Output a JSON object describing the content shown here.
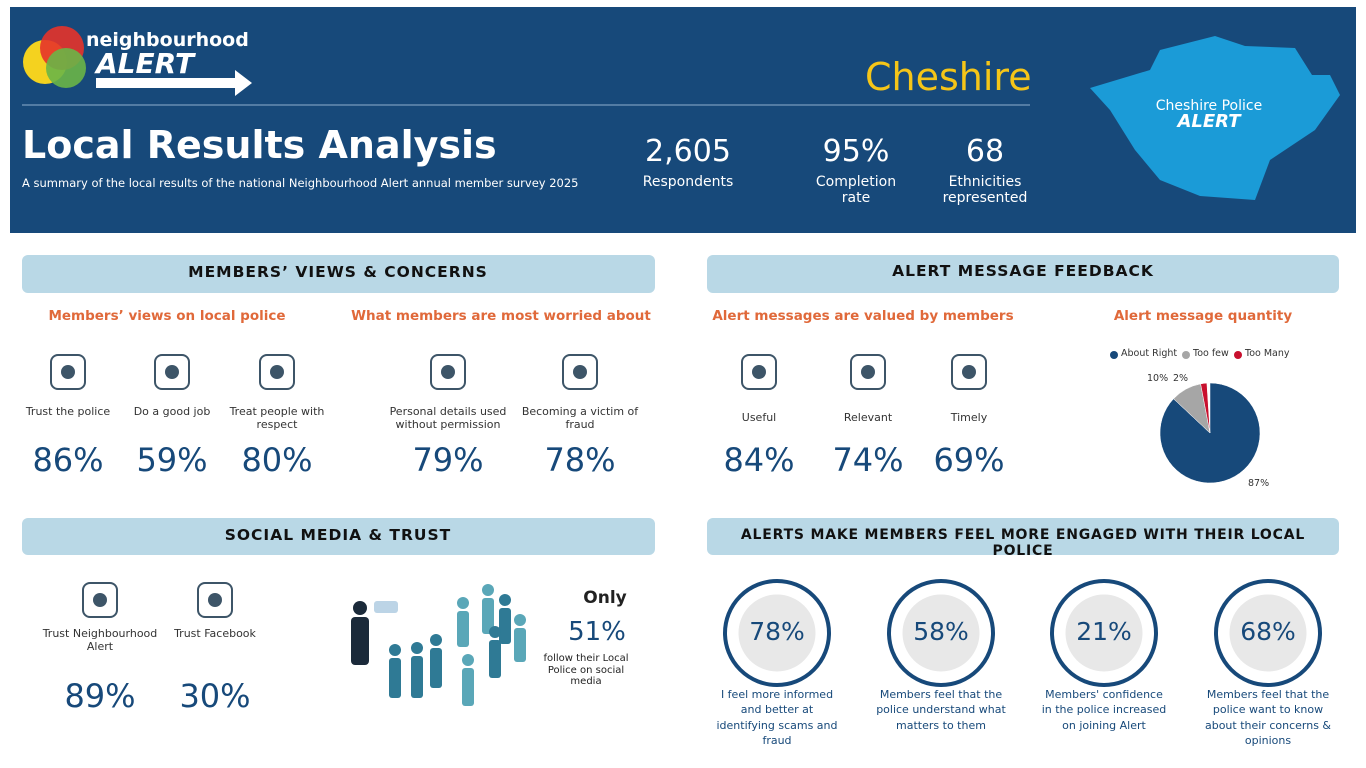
{
  "header": {
    "logo": [
      "neighbourhood",
      "ALERT"
    ],
    "region": "Cheshire",
    "title": "Local Results Analysis",
    "subtitle": "A summary of the local results of the national Neighbourhood Alert annual member survey 2025",
    "stats": [
      {
        "value": "2,605",
        "label": "Respondents"
      },
      {
        "value": "95%",
        "label": "Completion rate"
      },
      {
        "value": "68",
        "label": "Ethnicities represented"
      }
    ],
    "badge": [
      "Cheshire Police",
      "ALERT"
    ]
  },
  "views": {
    "heading": "MEMBERS’ VIEWS & CONCERNS",
    "groups": [
      {
        "title": "Members’ views on local police",
        "items": [
          {
            "label": "Trust the police",
            "value": "86%"
          },
          {
            "label": "Do a good job",
            "value": "59%"
          },
          {
            "label": "Treat people with respect",
            "value": "80%"
          }
        ]
      },
      {
        "title": "What members are most worried about",
        "items": [
          {
            "label": "Personal details used without permission",
            "value": "79%"
          },
          {
            "label": "Becoming a victim of fraud",
            "value": "78%"
          }
        ]
      }
    ]
  },
  "feedback": {
    "heading": "ALERT MESSAGE FEEDBACK",
    "title": "Alert messages are valued by members",
    "items": [
      {
        "label": "Useful",
        "value": "84%"
      },
      {
        "label": "Relevant",
        "value": "74%"
      },
      {
        "label": "Timely",
        "value": "69%"
      }
    ]
  },
  "chart_data": {
    "type": "pie",
    "title": "Alert message quantity",
    "categories": [
      "About Right",
      "Too few",
      "Too Many"
    ],
    "values": [
      87,
      10,
      2
    ],
    "value_labels": [
      "87%",
      "10%",
      "2%"
    ],
    "colors": [
      "#17497a",
      "#a6a6a6",
      "#c8102e"
    ],
    "legend": "top"
  },
  "social": {
    "heading": "SOCIAL MEDIA & TRUST",
    "items": [
      {
        "label": "Trust Neighbourhood Alert",
        "value": "89%"
      },
      {
        "label": "Trust Facebook",
        "value": "30%"
      }
    ],
    "callout": {
      "lead": "Only",
      "value": "51%",
      "text": "follow their Local Police on social media"
    }
  },
  "engagement": {
    "heading": "ALERTS MAKE MEMBERS FEEL MORE ENGAGED WITH THEIR LOCAL POLICE",
    "items": [
      {
        "value": "78%",
        "label": "I feel more informed and better at identifying scams and fraud"
      },
      {
        "value": "58%",
        "label": "Members feel that the police understand what matters to them"
      },
      {
        "value": "21%",
        "label": "Members' confidence in the police increased on joining Alert"
      },
      {
        "value": "68%",
        "label": "Members feel that the police want to know about their concerns & opinions"
      }
    ]
  }
}
